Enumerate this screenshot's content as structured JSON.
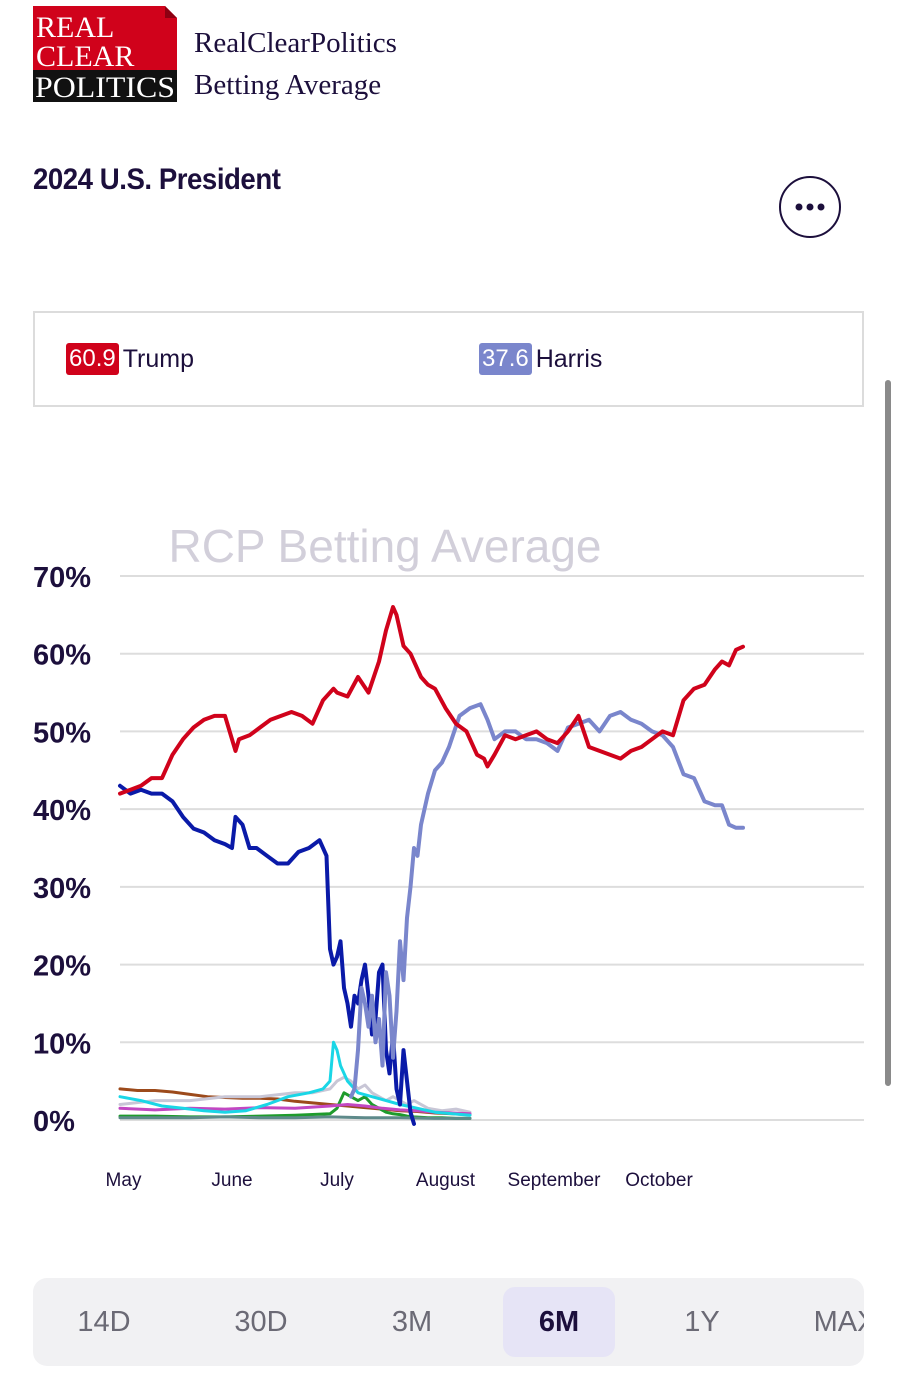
{
  "header": {
    "logo_lines": [
      "REAL",
      "CLEAR",
      "POLITICS"
    ],
    "site_title_line1": "RealClearPolitics",
    "site_title_line2": "Betting Average"
  },
  "page_title": "2024 U.S. President",
  "menu_icon": "ellipsis-icon",
  "legend": [
    {
      "value": "60.9",
      "name": "Trump",
      "color": "#d0021b"
    },
    {
      "value": "37.6",
      "name": "Harris",
      "color": "#7a86cc"
    }
  ],
  "chart_data": {
    "type": "line",
    "title": "RCP Betting Average",
    "ylim": [
      0,
      70
    ],
    "yticks": [
      "70%",
      "60%",
      "50%",
      "40%",
      "30%",
      "20%",
      "10%",
      "0%"
    ],
    "ytick_values": [
      70,
      60,
      50,
      40,
      30,
      20,
      10,
      0
    ],
    "xticks": [
      "May",
      "June",
      "July",
      "August",
      "September",
      "October"
    ],
    "xtick_days": [
      1,
      32,
      62,
      93,
      124,
      154
    ],
    "x_unit": "day of period starting May 1",
    "grid": true,
    "series": [
      {
        "name": "Trump",
        "color": "#d0021b",
        "x": [
          0,
          3,
          6,
          9,
          12,
          15,
          18,
          21,
          24,
          27,
          30,
          33,
          34,
          37,
          40,
          43,
          46,
          49,
          52,
          55,
          58,
          61,
          62,
          65,
          68,
          71,
          74,
          76,
          78,
          79,
          81,
          83,
          86,
          88,
          90,
          93,
          96,
          99,
          102,
          104,
          105,
          107,
          110,
          113,
          116,
          119,
          122,
          125,
          128,
          131,
          134,
          137,
          140,
          143,
          146,
          149,
          152,
          155,
          158,
          161,
          164,
          167,
          170,
          172,
          174,
          176,
          178
        ],
        "y": [
          42,
          42.5,
          43,
          44,
          44,
          47,
          49,
          50.5,
          51.5,
          52,
          52,
          47.5,
          49,
          49.5,
          50.5,
          51.5,
          52,
          52.5,
          52,
          51,
          54,
          55.5,
          55,
          54.5,
          57,
          55,
          59,
          63,
          66,
          65,
          61,
          60,
          57,
          56,
          55.5,
          53,
          51,
          50,
          47,
          46.5,
          45.5,
          47,
          49.5,
          49,
          49.5,
          50,
          49,
          48.5,
          50,
          52,
          48,
          47.5,
          47,
          46.5,
          47.5,
          48,
          49,
          50,
          49.5,
          54,
          55.5,
          56,
          58,
          59,
          58.5,
          60.5,
          60.9
        ]
      },
      {
        "name": "Harris",
        "color": "#7a86cc",
        "x": [
          66,
          67,
          68,
          69,
          70,
          71,
          72,
          73,
          74,
          75,
          76,
          77,
          78,
          79,
          80,
          81,
          82,
          83,
          84,
          85,
          86,
          88,
          90,
          92,
          94,
          97,
          100,
          103,
          105,
          107,
          110,
          113,
          116,
          119,
          122,
          125,
          128,
          131,
          134,
          137,
          140,
          143,
          146,
          149,
          152,
          155,
          158,
          161,
          164,
          167,
          170,
          172,
          174,
          176,
          178
        ],
        "y": [
          3,
          4,
          9,
          17,
          15,
          12,
          16,
          10,
          13,
          7,
          19,
          16,
          8,
          14,
          23,
          18,
          26,
          30,
          35,
          34,
          38,
          42,
          45,
          46,
          48,
          52,
          53,
          53.5,
          51.5,
          49,
          50,
          50,
          49,
          49,
          48.5,
          47.5,
          50.5,
          51,
          51.5,
          50,
          52,
          52.5,
          51.5,
          51,
          50,
          49.5,
          48,
          44.5,
          44,
          41,
          40.5,
          40.5,
          38,
          37.6,
          37.6
        ]
      },
      {
        "name": "",
        "color": "#0a1aa8",
        "x": [
          0,
          3,
          6,
          9,
          12,
          15,
          18,
          21,
          24,
          27,
          30,
          32,
          33,
          35,
          37,
          39,
          42,
          45,
          48,
          51,
          54,
          57,
          59,
          60,
          61,
          62,
          63,
          64,
          65,
          66,
          67,
          68,
          69,
          70,
          71,
          72,
          73,
          74,
          75,
          76,
          77,
          78,
          79,
          80,
          81,
          82,
          83,
          84
        ],
        "y": [
          43,
          42,
          42.5,
          42,
          42,
          41,
          39,
          37.5,
          37,
          36,
          35.5,
          35,
          39,
          38,
          35,
          35,
          34,
          33,
          33,
          34.5,
          35,
          36,
          34,
          22,
          20,
          21,
          23,
          17,
          15,
          12,
          16,
          15,
          18,
          20,
          16,
          11,
          13,
          19,
          20,
          9,
          6,
          11,
          4,
          2,
          9,
          5,
          1,
          -0.5
        ]
      },
      {
        "name": "",
        "color": "#1ad6e6",
        "x": [
          0,
          6,
          12,
          18,
          24,
          30,
          36,
          42,
          48,
          54,
          58,
          60,
          61,
          62,
          63,
          65,
          68,
          72,
          76,
          80,
          85,
          90,
          95,
          100
        ],
        "y": [
          3,
          2.5,
          1.8,
          1.5,
          1.2,
          1,
          1.2,
          2,
          3,
          3.5,
          4,
          5,
          10,
          9,
          7,
          5,
          3.5,
          3,
          2.5,
          2,
          1.5,
          1,
          0.8,
          0.6
        ]
      },
      {
        "name": "",
        "color": "#9c4a1b",
        "x": [
          0,
          5,
          10,
          15,
          20,
          25,
          30,
          35,
          40,
          45,
          50,
          55,
          60,
          65,
          70,
          75,
          80,
          85,
          90,
          95,
          100
        ],
        "y": [
          4,
          3.8,
          3.8,
          3.6,
          3.3,
          3,
          2.9,
          2.8,
          2.8,
          2.7,
          2.4,
          2.2,
          2,
          1.8,
          1.6,
          1.4,
          1.2,
          1.1,
          0.9,
          0.8,
          0.7
        ]
      },
      {
        "name": "",
        "color": "#1e9b2c",
        "x": [
          0,
          10,
          20,
          30,
          40,
          50,
          60,
          62,
          64,
          66,
          68,
          70,
          72,
          74,
          76,
          78,
          80,
          82,
          84,
          88,
          92,
          96,
          100
        ],
        "y": [
          0.5,
          0.5,
          0.4,
          0.4,
          0.5,
          0.6,
          0.8,
          1.5,
          3.5,
          3,
          2.5,
          3,
          2,
          1.5,
          1,
          0.8,
          0.7,
          0.5,
          0.4,
          0.3,
          0.3,
          0.2,
          0.2
        ]
      },
      {
        "name": "",
        "color": "#c8c6d6",
        "x": [
          0,
          10,
          20,
          30,
          40,
          50,
          55,
          60,
          62,
          64,
          66,
          68,
          70,
          72,
          74,
          76,
          78,
          80,
          82,
          84,
          88,
          92,
          96,
          100
        ],
        "y": [
          2,
          2.5,
          2.5,
          3,
          3,
          3.5,
          3.5,
          4,
          5,
          5.5,
          5,
          4,
          4.5,
          3.5,
          3,
          2.5,
          3,
          2.5,
          2,
          2.5,
          1.5,
          1.2,
          1.4,
          1
        ]
      },
      {
        "name": "",
        "color": "#c247c2",
        "x": [
          0,
          10,
          20,
          30,
          40,
          50,
          60,
          65,
          70,
          75,
          80,
          85,
          90,
          95,
          100
        ],
        "y": [
          1.5,
          1.3,
          1.5,
          1.4,
          1.6,
          1.5,
          1.8,
          2,
          1.8,
          1.5,
          1.3,
          1.2,
          1,
          0.9,
          0.8
        ]
      },
      {
        "name": "",
        "color": "#5e8a8a",
        "x": [
          0,
          10,
          20,
          30,
          40,
          50,
          60,
          70,
          80,
          90,
          100
        ],
        "y": [
          0.3,
          0.3,
          0.3,
          0.4,
          0.3,
          0.3,
          0.4,
          0.3,
          0.3,
          0.2,
          0.2
        ]
      }
    ]
  },
  "ranges": [
    "14D",
    "30D",
    "3M",
    "6M",
    "1Y",
    "MAX"
  ],
  "active_range": "6M"
}
